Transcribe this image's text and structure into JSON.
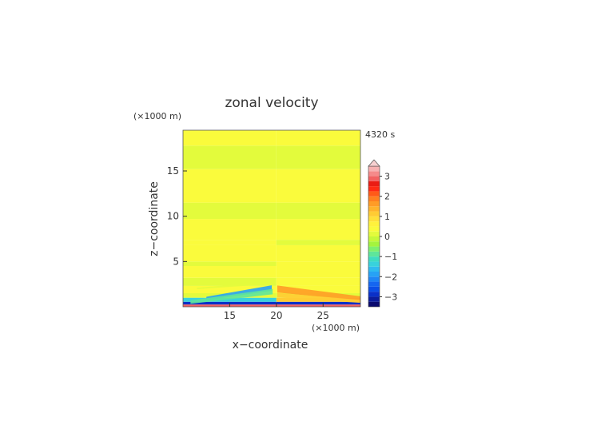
{
  "chart_data": {
    "type": "heatmap",
    "title": "zonal velocity",
    "time_label": "4320 s",
    "xlabel": "x−coordinate",
    "ylabel": "z−coordinate",
    "x_unit_label": "(×1000 m)",
    "y_unit_label": "(×1000 m)",
    "xlim": [
      10,
      29
    ],
    "ylim": [
      0,
      19.5
    ],
    "x_ticks": [
      15,
      20,
      25
    ],
    "y_ticks": [
      5,
      10,
      15
    ],
    "grid": false,
    "colorbar": {
      "levels": [
        -3.5,
        -3.25,
        -3,
        -2.75,
        -2.5,
        -2.25,
        -2,
        -1.75,
        -1.5,
        -1.25,
        -1,
        -0.75,
        -0.5,
        -0.25,
        0,
        0.25,
        0.5,
        0.75,
        1,
        1.25,
        1.5,
        1.75,
        2,
        2.25,
        2.5,
        2.75,
        3,
        3.25,
        3.5
      ],
      "colors": [
        "#0a0a6e",
        "#0b1d9c",
        "#0a30c8",
        "#0a4ee6",
        "#1566f0",
        "#1f86f5",
        "#27a2f5",
        "#2fbbef",
        "#38d2dc",
        "#3fdcc0",
        "#5ee69a",
        "#7ef06e",
        "#a4f43e",
        "#c6f83a",
        "#e3fb3c",
        "#fafb3c",
        "#fff23c",
        "#ffe03a",
        "#ffcc33",
        "#ffb42c",
        "#ff9c26",
        "#ff8020",
        "#ff5a18",
        "#ff2a14",
        "#ea1c14",
        "#f26262",
        "#f58a8a",
        "#f7b2b2"
      ],
      "tick_labels": [
        "3",
        "2",
        "1",
        "0",
        "−1",
        "−2",
        "−3"
      ],
      "tick_values": [
        3,
        2,
        1,
        0,
        -1,
        -2,
        -3
      ],
      "extend": "max"
    },
    "bands": [
      {
        "z": [
          0.0,
          0.25
        ],
        "left": 2.8,
        "right": 2.8
      },
      {
        "z": [
          0.25,
          0.55
        ],
        "left": -2.8,
        "right": -2.9
      },
      {
        "z": [
          0.55,
          1.0
        ],
        "left": -1.5,
        "right": 1.0
      },
      {
        "z": [
          1.0,
          1.5
        ],
        "left": 0.05,
        "right": 0.2
      },
      {
        "z": [
          1.5,
          2.3
        ],
        "left": 0.25,
        "right": 0.35
      },
      {
        "z": [
          2.3,
          3.2
        ],
        "left": 0.1,
        "right": 0.3
      },
      {
        "z": [
          3.2,
          4.5
        ],
        "left": 0.3,
        "right": 0.35
      },
      {
        "z": [
          4.5,
          5.0
        ],
        "left": 0.15,
        "right": 0.25
      },
      {
        "z": [
          5.0,
          6.8
        ],
        "left": 0.35,
        "right": 0.3
      },
      {
        "z": [
          6.8,
          7.4
        ],
        "left": 0.25,
        "right": 0.15
      },
      {
        "z": [
          7.4,
          9.7
        ],
        "left": 0.3,
        "right": 0.35
      },
      {
        "z": [
          9.7,
          11.5
        ],
        "left": 0.1,
        "right": 0.1
      },
      {
        "z": [
          11.5,
          15.2
        ],
        "left": 0.35,
        "right": 0.3
      },
      {
        "z": [
          15.2,
          17.8
        ],
        "left": 0.1,
        "right": 0.1
      },
      {
        "z": [
          17.8,
          19.5
        ],
        "left": 0.35,
        "right": 0.3
      }
    ],
    "features": [
      {
        "kind": "jet",
        "side": "left",
        "value": -2.0,
        "x": [
          12.5,
          19.5
        ],
        "z": [
          1.1,
          2.6
        ]
      },
      {
        "kind": "jet",
        "side": "left",
        "value": -1.0,
        "x": [
          10.8,
          19.6
        ],
        "z": [
          0.7,
          2.2
        ]
      },
      {
        "kind": "jet",
        "side": "right",
        "value": 1.6,
        "x": [
          20.1,
          29
        ],
        "z": [
          0.9,
          2.6
        ]
      },
      {
        "kind": "jet",
        "side": "right",
        "value": 1.1,
        "x": [
          20.1,
          29
        ],
        "z": [
          0.6,
          1.7
        ]
      },
      {
        "kind": "jet",
        "side": "left",
        "value": 0.0,
        "x": [
          11.5,
          17.5
        ],
        "z": [
          2.1,
          2.7
        ]
      }
    ]
  }
}
